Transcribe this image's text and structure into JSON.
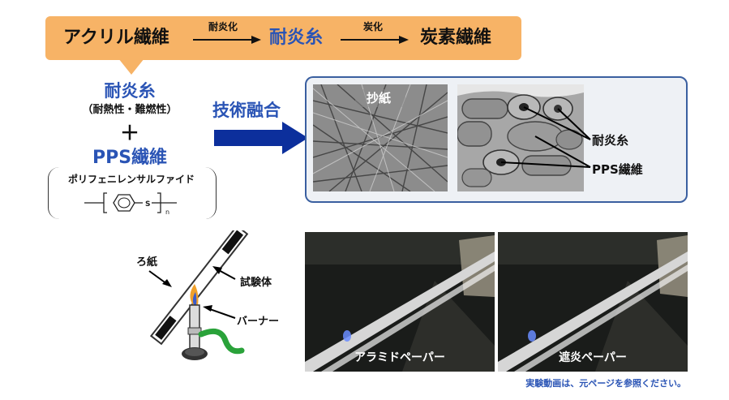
{
  "process": {
    "acrylic": "アクリル繊維",
    "step1": "耐炎化",
    "oxidized": "耐炎糸",
    "step2": "炭化",
    "carbon": "炭素繊維"
  },
  "composition": {
    "oxidized": "耐炎糸",
    "oxidized_note": "（耐熱性・難燃性）",
    "plus": "＋",
    "pps": "PPS繊維",
    "pps_fullname": "ポリフェニレンサルファイド",
    "formula_s": "S",
    "formula_n": "n"
  },
  "fusion": {
    "label": "技術融合"
  },
  "micrograph": {
    "paper_label": "抄紙",
    "fiber1_label": "耐炎糸",
    "fiber2_label": "PPS繊維"
  },
  "experiment": {
    "paper_label": "ろ紙",
    "specimen_label": "試験体",
    "burner_label": "バーナー",
    "photo1_caption": "アラミドペーパー",
    "photo2_caption": "遮炎ペーパー",
    "note": "実験動画は、元ページを参照ください。"
  },
  "colors": {
    "banner": "#f7b366",
    "accent_blue": "#2a54b5",
    "arrow_navy": "#0c2f9c",
    "panel_border": "#3a5fa0"
  }
}
